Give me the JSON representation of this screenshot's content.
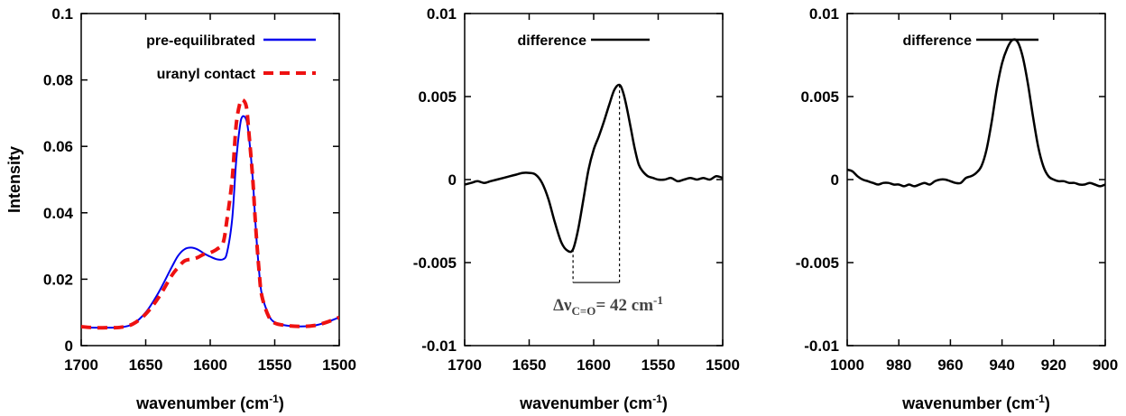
{
  "chart_data": [
    {
      "type": "line",
      "xlabel": "wavenumber (cm-1)",
      "ylabel": "Intensity",
      "xlim": [
        1700,
        1500
      ],
      "ylim": [
        0,
        0.1
      ],
      "x_reversed": true,
      "xticks": [
        "1700",
        "1650",
        "1600",
        "1550",
        "1500"
      ],
      "yticks": [
        "0",
        "0.02",
        "0.04",
        "0.06",
        "0.08",
        "0.1"
      ],
      "ytick_values": [
        0,
        0.02,
        0.04,
        0.06,
        0.08,
        0.1
      ],
      "legend": "top-right",
      "series": [
        {
          "name": "pre-equilibrated",
          "color": "#0000ee",
          "style": "solid",
          "x": [
            1700,
            1690,
            1680,
            1670,
            1660,
            1650,
            1640,
            1630,
            1625,
            1620,
            1615,
            1610,
            1605,
            1600,
            1595,
            1590,
            1587,
            1583,
            1580,
            1577,
            1575,
            1572,
            1570,
            1567,
            1565,
            1562,
            1560,
            1555,
            1550,
            1540,
            1530,
            1520,
            1510,
            1500
          ],
          "y": [
            0.0055,
            0.0054,
            0.0054,
            0.0055,
            0.0065,
            0.01,
            0.016,
            0.0235,
            0.027,
            0.029,
            0.0295,
            0.029,
            0.0278,
            0.0268,
            0.026,
            0.026,
            0.028,
            0.038,
            0.055,
            0.066,
            0.069,
            0.068,
            0.063,
            0.05,
            0.037,
            0.022,
            0.0155,
            0.0095,
            0.007,
            0.006,
            0.0058,
            0.006,
            0.007,
            0.0085
          ]
        },
        {
          "name": "uranyl contact",
          "color": "#ee1111",
          "style": "dashed",
          "x": [
            1700,
            1690,
            1680,
            1670,
            1660,
            1650,
            1640,
            1630,
            1625,
            1620,
            1615,
            1610,
            1605,
            1600,
            1595,
            1590,
            1587,
            1583,
            1580,
            1577,
            1575,
            1572,
            1570,
            1567,
            1565,
            1562,
            1560,
            1555,
            1550,
            1540,
            1530,
            1520,
            1510,
            1500
          ],
          "y": [
            0.0057,
            0.0054,
            0.0054,
            0.0055,
            0.0065,
            0.0095,
            0.0145,
            0.021,
            0.0235,
            0.0255,
            0.026,
            0.0265,
            0.0275,
            0.028,
            0.029,
            0.031,
            0.038,
            0.05,
            0.066,
            0.073,
            0.074,
            0.072,
            0.064,
            0.05,
            0.037,
            0.022,
            0.015,
            0.009,
            0.0068,
            0.006,
            0.0058,
            0.006,
            0.007,
            0.0085
          ]
        }
      ]
    },
    {
      "type": "line",
      "xlabel": "wavenumber (cm-1)",
      "ylabel": "",
      "xlim": [
        1700,
        1500
      ],
      "ylim": [
        -0.01,
        0.01
      ],
      "x_reversed": true,
      "xticks": [
        "1700",
        "1650",
        "1600",
        "1550",
        "1500"
      ],
      "yticks": [
        "-0.01",
        "-0.005",
        "0",
        "0.005",
        "0.01"
      ],
      "ytick_values": [
        -0.01,
        -0.005,
        0,
        0.005,
        0.01
      ],
      "legend": "top-left",
      "annotation": {
        "text": "Δν",
        "subscript": "C=O",
        "rest": "= 42 cm",
        "superscript": "-1",
        "x_from": 1616,
        "x_to": 1580,
        "level": -0.0062
      },
      "series": [
        {
          "name": "difference",
          "color": "#000000",
          "style": "solid",
          "x": [
            1700,
            1695,
            1690,
            1685,
            1680,
            1675,
            1670,
            1665,
            1660,
            1655,
            1650,
            1645,
            1640,
            1635,
            1630,
            1625,
            1620,
            1616,
            1612,
            1608,
            1604,
            1600,
            1596,
            1592,
            1588,
            1584,
            1580,
            1577,
            1574,
            1571,
            1568,
            1565,
            1562,
            1558,
            1554,
            1550,
            1545,
            1540,
            1535,
            1530,
            1525,
            1520,
            1515,
            1510,
            1505,
            1500
          ],
          "y": [
            -0.0003,
            -0.0002,
            -0.0001,
            -0.0002,
            -0.0001,
            0,
            0.0001,
            0.0002,
            0.0003,
            0.0004,
            0.0004,
            0.0003,
            -0.0002,
            -0.0012,
            -0.0026,
            -0.0038,
            -0.0043,
            -0.0042,
            -0.003,
            -0.0012,
            0.0006,
            0.0018,
            0.0026,
            0.0035,
            0.0045,
            0.0054,
            0.0057,
            0.0052,
            0.0042,
            0.003,
            0.0018,
            0.0009,
            0.0005,
            0.0002,
            0.0001,
            0,
            0,
            0.0001,
            -0.0001,
            0,
            0.0001,
            0,
            0.0001,
            0,
            0.0002,
            0.0001
          ]
        }
      ]
    },
    {
      "type": "line",
      "xlabel": "wavenumber (cm-1)",
      "ylabel": "",
      "xlim": [
        1000,
        900
      ],
      "ylim": [
        -0.01,
        0.01
      ],
      "x_reversed": true,
      "xticks": [
        "1000",
        "980",
        "960",
        "940",
        "920",
        "900"
      ],
      "yticks": [
        "-0.01",
        "-0.005",
        "0",
        "0.005",
        "0.01"
      ],
      "ytick_values": [
        -0.01,
        -0.005,
        0,
        0.005,
        0.01
      ],
      "legend": "top-left",
      "series": [
        {
          "name": "difference",
          "color": "#000000",
          "style": "solid",
          "x": [
            1000,
            998,
            996,
            994,
            992,
            990,
            988,
            986,
            984,
            982,
            980,
            978,
            976,
            974,
            972,
            970,
            968,
            966,
            964,
            962,
            960,
            958,
            956,
            954,
            952,
            950,
            948,
            946,
            944,
            942,
            940,
            938,
            936,
            934,
            932,
            930,
            928,
            926,
            924,
            922,
            920,
            918,
            916,
            914,
            912,
            910,
            908,
            906,
            904,
            902,
            900
          ],
          "y": [
            0.0006,
            0.0005,
            0.0002,
            0,
            -0.0001,
            -0.0002,
            -0.0003,
            -0.0002,
            -0.0002,
            -0.0003,
            -0.0003,
            -0.0004,
            -0.0003,
            -0.0004,
            -0.0003,
            -0.0002,
            -0.0003,
            -0.0001,
            0,
            0,
            -0.0001,
            -0.0002,
            -0.0002,
            0.0001,
            0.0002,
            0.0004,
            0.0008,
            0.0018,
            0.0035,
            0.0055,
            0.007,
            0.0079,
            0.0084,
            0.0083,
            0.0074,
            0.0058,
            0.0038,
            0.002,
            0.0008,
            0.0002,
            0,
            -0.0001,
            -0.0001,
            -0.0002,
            -0.0002,
            -0.0003,
            -0.0003,
            -0.0002,
            -0.0003,
            -0.0004,
            -0.0003
          ]
        }
      ]
    }
  ]
}
